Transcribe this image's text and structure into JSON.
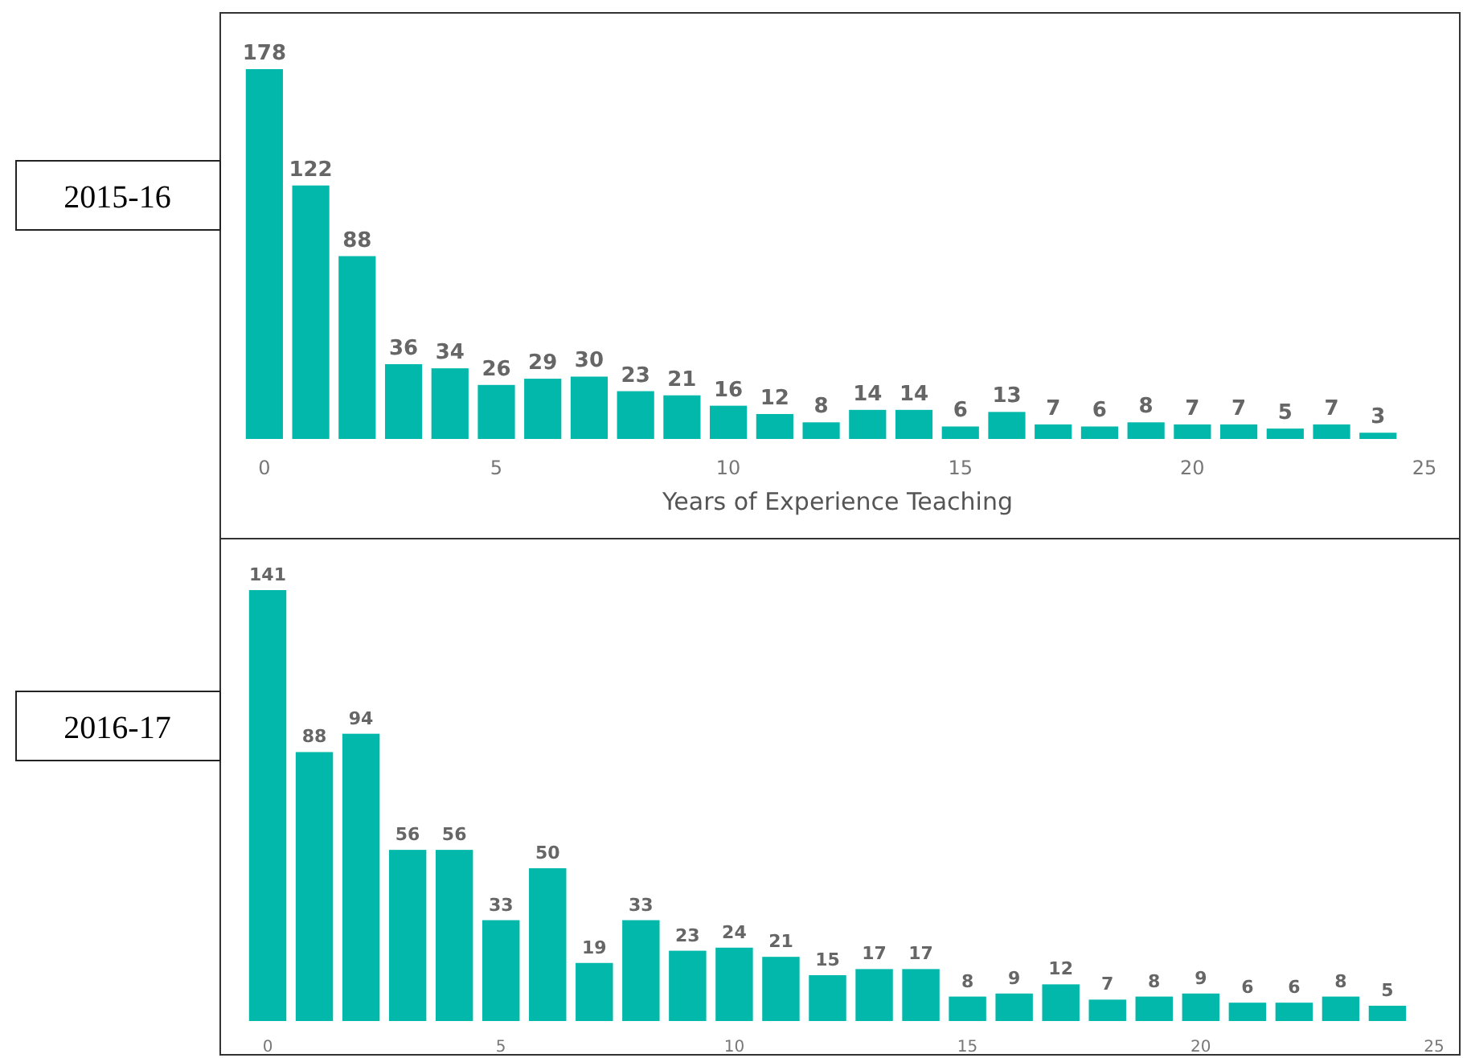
{
  "chart_data": [
    {
      "type": "bar",
      "title": "2015-16",
      "xlabel": "Years of Experience Teaching",
      "x": [
        0,
        1,
        2,
        3,
        4,
        5,
        6,
        7,
        8,
        9,
        10,
        11,
        12,
        13,
        14,
        15,
        16,
        17,
        18,
        19,
        20,
        21,
        22,
        23,
        24
      ],
      "values": [
        178,
        122,
        88,
        36,
        34,
        26,
        29,
        30,
        23,
        21,
        16,
        12,
        8,
        14,
        14,
        6,
        13,
        7,
        6,
        8,
        7,
        7,
        5,
        7,
        3
      ],
      "color": "#01b8aa",
      "xlim": [
        -0.5,
        25
      ],
      "xticks": [
        0,
        5,
        10,
        15,
        20,
        25
      ],
      "data_labels": true
    },
    {
      "type": "bar",
      "title": "2016-17",
      "x": [
        0,
        1,
        2,
        3,
        4,
        5,
        6,
        7,
        8,
        9,
        10,
        11,
        12,
        13,
        14,
        15,
        16,
        17,
        18,
        19,
        20,
        21,
        22,
        23,
        24
      ],
      "values": [
        141,
        88,
        94,
        56,
        56,
        33,
        50,
        19,
        33,
        23,
        24,
        21,
        15,
        17,
        17,
        8,
        9,
        12,
        7,
        8,
        9,
        6,
        6,
        8,
        5
      ],
      "color": "#01b8aa",
      "xlim": [
        -0.5,
        25
      ],
      "xticks": [
        0,
        5,
        10,
        15,
        20,
        25
      ],
      "data_labels": true
    }
  ]
}
